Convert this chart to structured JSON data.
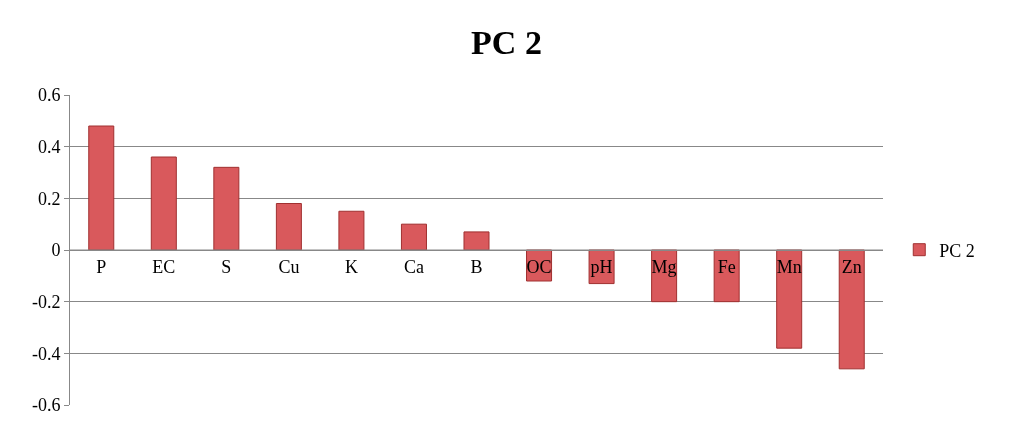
{
  "chart_data": {
    "type": "bar",
    "title": "PC 2",
    "categories": [
      "P",
      "EC",
      "S",
      "Cu",
      "K",
      "Ca",
      "B",
      "OC",
      "pH",
      "Mg",
      "Fe",
      "Mn",
      "Zn"
    ],
    "series": [
      {
        "name": "PC 2",
        "color": "#d9595c",
        "values": [
          0.48,
          0.36,
          0.32,
          0.18,
          0.15,
          0.1,
          0.07,
          -0.12,
          -0.13,
          -0.2,
          -0.2,
          -0.38,
          -0.46
        ]
      }
    ],
    "ylim": [
      -0.6,
      0.6
    ],
    "yticks": [
      0.6,
      0.4,
      0.2,
      0,
      -0.2,
      -0.4,
      -0.6
    ],
    "grid": "y",
    "legend": "right"
  }
}
